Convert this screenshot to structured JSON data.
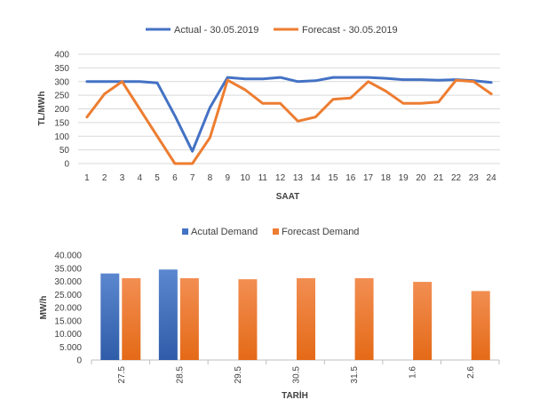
{
  "chart_data": [
    {
      "type": "line",
      "xlabel": "SAAT",
      "ylabel": "TL/MWh",
      "ylim": [
        0,
        400
      ],
      "yticks": [
        0,
        50,
        100,
        150,
        200,
        250,
        300,
        350,
        400
      ],
      "grid": true,
      "legend": "top",
      "categories": [
        "1",
        "2",
        "3",
        "4",
        "5",
        "6",
        "7",
        "8",
        "9",
        "10",
        "11",
        "12",
        "13",
        "14",
        "15",
        "16",
        "17",
        "18",
        "19",
        "20",
        "21",
        "22",
        "23",
        "24"
      ],
      "series": [
        {
          "name": "Actual - 30.05.2019",
          "color": "#4472c4",
          "values": [
            300,
            300,
            300,
            300,
            295,
            175,
            45,
            205,
            315,
            310,
            310,
            315,
            300,
            303,
            315,
            315,
            315,
            312,
            307,
            307,
            305,
            307,
            303,
            297
          ]
        },
        {
          "name": "Forecast - 30.05.2019",
          "color": "#ed7d31",
          "values": [
            170,
            255,
            300,
            200,
            100,
            0,
            0,
            95,
            305,
            270,
            220,
            220,
            155,
            170,
            235,
            240,
            300,
            265,
            220,
            220,
            225,
            305,
            300,
            255
          ]
        }
      ]
    },
    {
      "type": "bar",
      "xlabel": "TARİH",
      "ylabel": "MW/h",
      "ylim": [
        0,
        40000
      ],
      "yticks": [
        0,
        5000,
        10000,
        15000,
        20000,
        25000,
        30000,
        35000,
        40000
      ],
      "ytick_labels": [
        "0",
        "5.000",
        "10.000",
        "15.000",
        "20.000",
        "25.000",
        "30.000",
        "35.000",
        "40.000"
      ],
      "grid": false,
      "legend": "top",
      "categories": [
        "27.5",
        "28.5",
        "29.5",
        "30.5",
        "31.5",
        "1.6",
        "2.6"
      ],
      "series": [
        {
          "name": "Acutal Demand",
          "color": "#4472c4",
          "values": [
            33000,
            34500,
            null,
            null,
            null,
            null,
            null
          ]
        },
        {
          "name": "Forecast Demand",
          "color": "#ed7d31",
          "values": [
            31200,
            31200,
            30800,
            31200,
            31200,
            29800,
            26300
          ]
        }
      ]
    }
  ]
}
